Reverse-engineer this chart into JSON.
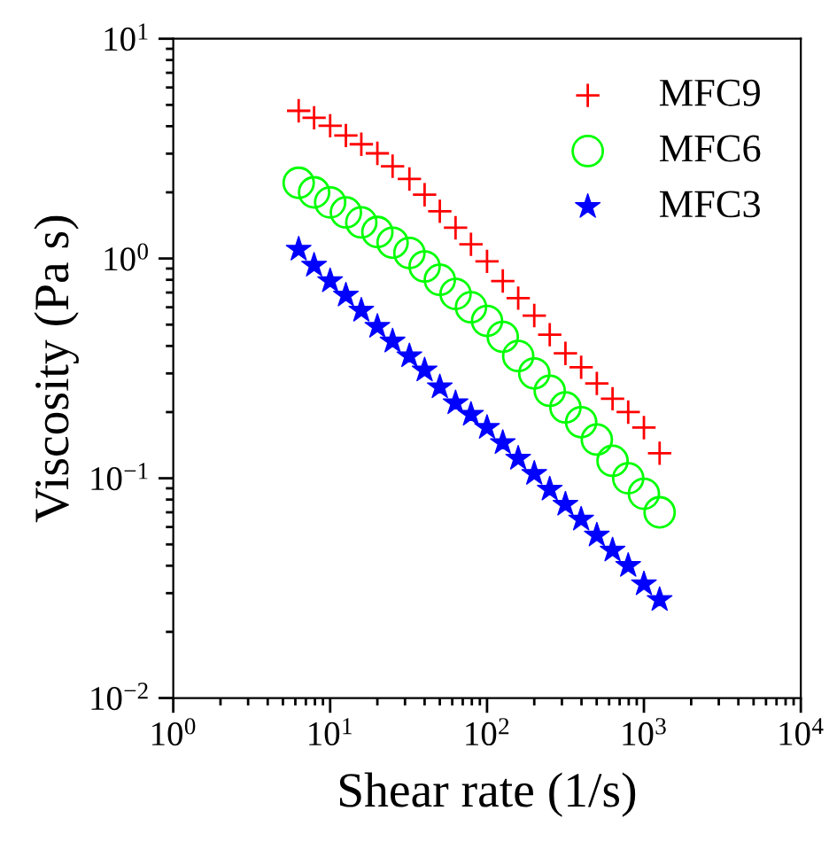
{
  "chart_data": {
    "type": "scatter",
    "xlabel": "Shear rate (1/s)",
    "ylabel": "Viscosity (Pa s)",
    "log": "xy",
    "x": [
      6.3,
      7.9,
      10,
      12.6,
      15.8,
      20,
      25,
      32,
      40,
      50,
      63,
      79,
      100,
      126,
      158,
      200,
      251,
      316,
      398,
      501,
      631,
      794,
      1000,
      1259
    ],
    "series": [
      {
        "name": "MFC9",
        "color": "#ff0000",
        "marker": "cross",
        "values": [
          4.7,
          4.37,
          4.02,
          3.63,
          3.31,
          3.01,
          2.63,
          2.3,
          1.95,
          1.64,
          1.38,
          1.16,
          0.97,
          0.79,
          0.66,
          0.55,
          0.45,
          0.37,
          0.32,
          0.27,
          0.23,
          0.2,
          0.17,
          0.13
        ]
      },
      {
        "name": "MFC6",
        "color": "#00ff00",
        "marker": "circle",
        "values": [
          2.21,
          2.0,
          1.8,
          1.62,
          1.46,
          1.32,
          1.18,
          1.06,
          0.92,
          0.8,
          0.69,
          0.6,
          0.52,
          0.44,
          0.36,
          0.3,
          0.25,
          0.21,
          0.18,
          0.15,
          0.12,
          0.1,
          0.085,
          0.07
        ]
      },
      {
        "name": "MFC3",
        "color": "#0000ff",
        "marker": "star",
        "values": [
          1.1,
          0.93,
          0.79,
          0.68,
          0.58,
          0.49,
          0.42,
          0.36,
          0.31,
          0.26,
          0.22,
          0.195,
          0.17,
          0.145,
          0.123,
          0.105,
          0.089,
          0.076,
          0.065,
          0.055,
          0.047,
          0.04,
          0.033,
          0.028
        ]
      }
    ],
    "xlim": [
      1,
      10000
    ],
    "ylim": [
      0.01,
      10
    ],
    "xticks": [
      {
        "value": 1,
        "label": "10$^{0}$"
      },
      {
        "value": 10,
        "label": "10$^{1}$"
      },
      {
        "value": 100,
        "label": "10$^{2}$"
      },
      {
        "value": 1000,
        "label": "10$^{3}$"
      },
      {
        "value": 10000,
        "label": "10$^{4}$"
      }
    ],
    "yticks": [
      {
        "value": 0.01,
        "label": "10$^{−2}$"
      },
      {
        "value": 0.1,
        "label": "10$^{−1}$"
      },
      {
        "value": 1,
        "label": "10$^{0}$"
      },
      {
        "value": 10,
        "label": "10$^{1}$"
      }
    ],
    "grid": false,
    "legend": "top right"
  }
}
